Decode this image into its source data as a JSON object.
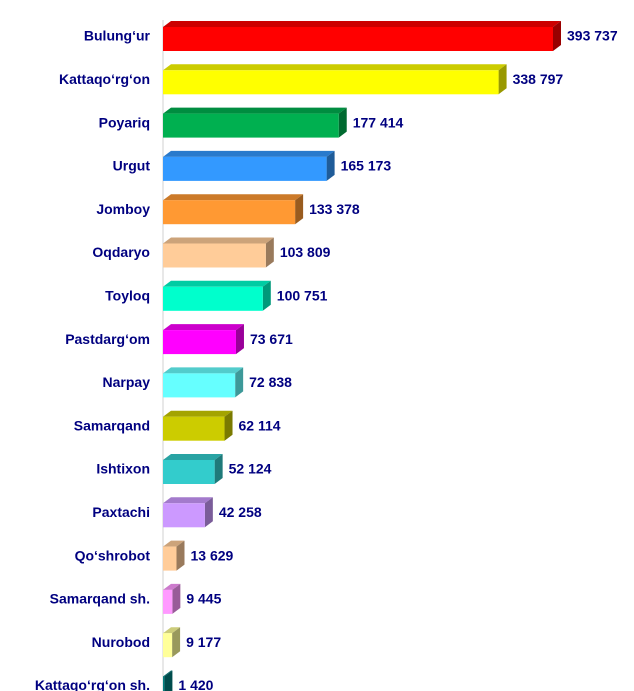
{
  "chart_data": {
    "type": "bar",
    "orientation": "horizontal",
    "categories": [
      "Bulung‘ur",
      "Kattaqo‘rg‘on",
      "Poyariq",
      "Urgut",
      "Jomboy",
      "Oqdaryo",
      "Toyloq",
      "Pastdarg‘om",
      "Narpay",
      "Samarqand",
      "Ishtixon",
      "Paxtachi",
      "Qo‘shrobot",
      "Samarqand sh.",
      "Nurobod",
      "Kattaqo‘rg‘on sh."
    ],
    "values": [
      393737,
      338797,
      177414,
      165173,
      133378,
      103809,
      100751,
      73671,
      72838,
      62114,
      52124,
      42258,
      13629,
      9445,
      9177,
      1420
    ],
    "value_labels": [
      "393 737",
      "338 797",
      "177 414",
      "165 173",
      "133 378",
      "103 809",
      "100 751",
      "73 671",
      "72 838",
      "62 114",
      "52 124",
      "42 258",
      "13 629",
      "9 445",
      "9 177",
      "1 420"
    ],
    "colors": [
      "#ff0000",
      "#ffff00",
      "#00b050",
      "#3399ff",
      "#ff9933",
      "#ffcc99",
      "#00ffcc",
      "#ff00ff",
      "#66ffff",
      "#cccc00",
      "#33cccc",
      "#cc99ff",
      "#ffcc99",
      "#ff99ff",
      "#ffff99",
      "#008080"
    ]
  }
}
